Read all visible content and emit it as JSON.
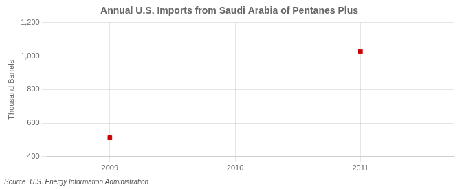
{
  "chart_data": {
    "type": "scatter",
    "title": "Annual U.S. Imports from Saudi Arabia of Pentanes Plus",
    "ylabel": "Thousand Barrels",
    "annotations": [
      "Source: U.S. Energy Information Administration"
    ],
    "x": [
      2009,
      2011
    ],
    "values": [
      513,
      1027
    ],
    "color": "#cc0000",
    "marker": "square",
    "xlim": [
      2008.5,
      2011.75
    ],
    "ylim": [
      400,
      1200
    ],
    "xticks": [
      2009,
      2010,
      2011
    ],
    "yticks": [
      400,
      600,
      800,
      {
        "value": 1000,
        "label": "1,000"
      },
      {
        "value": 1200,
        "label": "1,200"
      }
    ],
    "grid": true
  }
}
